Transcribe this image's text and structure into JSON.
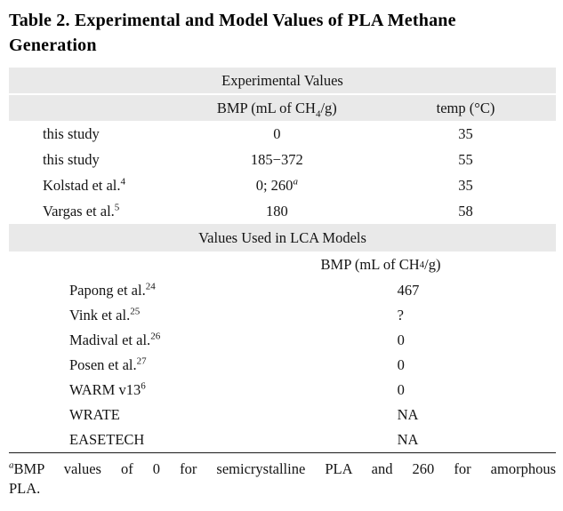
{
  "title": "Table 2. Experimental and Model Values of PLA Methane Generation",
  "colors": {
    "band": "#e9e9e9"
  },
  "experimental": {
    "section_header": "Experimental Values",
    "bmp_header": {
      "prefix": "BMP (mL of CH",
      "sub": "4",
      "suffix": "/g)"
    },
    "temp_header": "temp (°C)",
    "rows": [
      {
        "label": "this study",
        "ref": "",
        "bmp": "0",
        "bmp_note": "",
        "temp": "35"
      },
      {
        "label": "this study",
        "ref": "",
        "bmp": "185−372",
        "bmp_note": "",
        "temp": "55"
      },
      {
        "label": "Kolstad et al.",
        "ref": "4",
        "bmp": "0; 260",
        "bmp_note": "a",
        "temp": "35"
      },
      {
        "label": "Vargas et al.",
        "ref": "5",
        "bmp": "180",
        "bmp_note": "",
        "temp": "58"
      }
    ]
  },
  "lca": {
    "section_header": "Values Used in LCA Models",
    "bmp_header": {
      "prefix": "BMP (mL of CH",
      "sub": "4",
      "suffix": "/g)"
    },
    "rows": [
      {
        "label": "Papong et al.",
        "ref": "24",
        "bmp": "467"
      },
      {
        "label": "Vink et al.",
        "ref": "25",
        "bmp": "?"
      },
      {
        "label": "Madival et al.",
        "ref": "26",
        "bmp": "0"
      },
      {
        "label": "Posen et al.",
        "ref": "27",
        "bmp": "0"
      },
      {
        "label": "WARM v13",
        "ref": "6",
        "bmp": "0"
      },
      {
        "label": "WRATE",
        "ref": "",
        "bmp": "NA"
      },
      {
        "label": "EASETECH",
        "ref": "",
        "bmp": "NA"
      }
    ]
  },
  "footnote": {
    "marker": "a",
    "line1": "BMP values of 0 for semicrystalline PLA and 260 for amorphous",
    "line2": "PLA."
  }
}
